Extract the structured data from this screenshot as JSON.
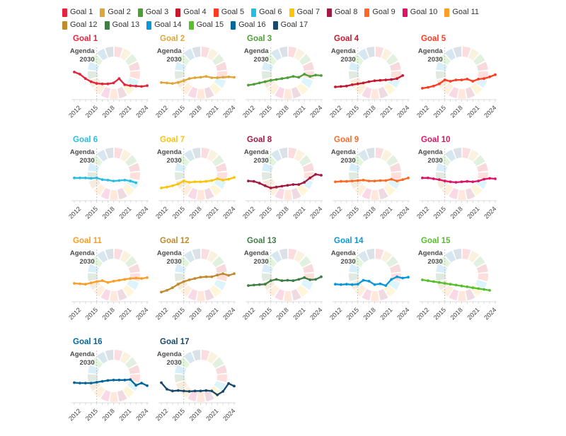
{
  "page": {
    "background": "#ffffff"
  },
  "legend": {
    "items": [
      {
        "label": "Goal 1",
        "color": "#E5243B"
      },
      {
        "label": "Goal 2",
        "color": "#DDA63A"
      },
      {
        "label": "Goal 3",
        "color": "#4C9F38"
      },
      {
        "label": "Goal 4",
        "color": "#C5192D"
      },
      {
        "label": "Goal 5",
        "color": "#FF3A21"
      },
      {
        "label": "Goal 6",
        "color": "#26BDE2"
      },
      {
        "label": "Goal 7",
        "color": "#FCC30B"
      },
      {
        "label": "Goal 8",
        "color": "#A21942"
      },
      {
        "label": "Goal 9",
        "color": "#FD6925"
      },
      {
        "label": "Goal 10",
        "color": "#DD1367"
      },
      {
        "label": "Goal 11",
        "color": "#FD9D24"
      },
      {
        "label": "Goal 12",
        "color": "#BF8B2E"
      },
      {
        "label": "Goal 13",
        "color": "#3F7E44"
      },
      {
        "label": "Goal 14",
        "color": "#0A97D9"
      },
      {
        "label": "Goal 15",
        "color": "#56C02B"
      },
      {
        "label": "Goal 16",
        "color": "#00689D"
      },
      {
        "label": "Goal 17",
        "color": "#19486A"
      }
    ]
  },
  "agenda": {
    "line1": "Agenda",
    "line2": "2030"
  },
  "wheel": {
    "opacity": 0.16,
    "colors": [
      "#E5243B",
      "#DDA63A",
      "#4C9F38",
      "#C5192D",
      "#FF3A21",
      "#26BDE2",
      "#FCC30B",
      "#A21942",
      "#FD6925",
      "#DD1367",
      "#FD9D24",
      "#BF8B2E",
      "#3F7E44",
      "#0A97D9",
      "#56C02B",
      "#00689D",
      "#19486A"
    ]
  },
  "chart_data": {
    "type": "line",
    "layout": "small-multiples",
    "x": [
      2011,
      2012,
      2013,
      2014,
      2015,
      2016,
      2017,
      2018,
      2019,
      2020,
      2021,
      2022,
      2023,
      2024
    ],
    "x_tick_labels": [
      "2012",
      "2015",
      "2018",
      "2021",
      "2024"
    ],
    "annotation_line_x": 2015,
    "ylim": [
      0,
      100
    ],
    "grid": false,
    "legend_position": "top",
    "series": [
      {
        "name": "Goal 1",
        "color": "#E5243B",
        "values": [
          63,
          58,
          48,
          41,
          37,
          36,
          36,
          38,
          48,
          34,
          32,
          31,
          30,
          32
        ]
      },
      {
        "name": "Goal 2",
        "color": "#DDA63A",
        "values": [
          39,
          38,
          37,
          39,
          43,
          48,
          50,
          51,
          53,
          50,
          50,
          51,
          52,
          51
        ]
      },
      {
        "name": "Goal 3",
        "color": "#4C9F38",
        "values": [
          33,
          35,
          38,
          41,
          44,
          46,
          48,
          50,
          53,
          51,
          58,
          53,
          56,
          55
        ]
      },
      {
        "name": "Goal 4",
        "color": "#C5192D",
        "values": [
          29,
          30,
          31,
          34,
          36,
          38,
          41,
          43,
          44,
          45,
          46,
          48,
          55,
          null
        ]
      },
      {
        "name": "Goal 5",
        "color": "#FF3A21",
        "values": [
          26,
          28,
          31,
          36,
          45,
          42,
          45,
          45,
          47,
          42,
          47,
          48,
          52,
          57
        ]
      },
      {
        "name": "Goal 6",
        "color": "#26BDE2",
        "values": [
          52,
          52,
          52,
          51,
          52,
          48,
          47,
          45,
          46,
          47,
          45,
          41,
          null,
          null
        ]
      },
      {
        "name": "Goal 7",
        "color": "#FCC30B",
        "values": [
          29,
          31,
          34,
          38,
          45,
          42,
          43,
          43,
          44,
          46,
          50,
          47,
          49,
          53
        ]
      },
      {
        "name": "Goal 8",
        "color": "#A21942",
        "values": [
          45,
          44,
          40,
          34,
          29,
          31,
          33,
          35,
          37,
          37,
          42,
          52,
          60,
          58
        ]
      },
      {
        "name": "Goal 9",
        "color": "#FD6925",
        "values": [
          43,
          44,
          44,
          45,
          46,
          47,
          45,
          45,
          46,
          46,
          49,
          45,
          48,
          52
        ]
      },
      {
        "name": "Goal 10",
        "color": "#DD1367",
        "values": [
          52,
          52,
          50,
          48,
          45,
          43,
          42,
          43,
          44,
          43,
          45,
          49,
          51,
          50
        ]
      },
      {
        "name": "Goal 11",
        "color": "#FD9D24",
        "values": [
          42,
          41,
          40,
          43,
          46,
          48,
          44,
          47,
          49,
          51,
          53,
          54,
          53,
          55
        ]
      },
      {
        "name": "Goal 12",
        "color": "#BF8B2E",
        "values": [
          22,
          26,
          32,
          40,
          46,
          50,
          53,
          56,
          57,
          57,
          61,
          64,
          60,
          64
        ]
      },
      {
        "name": "Goal 13",
        "color": "#3F7E44",
        "values": [
          37,
          38,
          39,
          40,
          48,
          51,
          48,
          49,
          48,
          51,
          55,
          50,
          51,
          57
        ]
      },
      {
        "name": "Goal 14",
        "color": "#0A97D9",
        "values": [
          40,
          39,
          40,
          39,
          40,
          49,
          47,
          39,
          41,
          37,
          51,
          57,
          54,
          56
        ]
      },
      {
        "name": "Goal 15",
        "color": "#56C02B",
        "values": [
          50,
          48,
          46,
          44,
          42,
          40,
          38,
          36,
          34,
          32,
          30,
          28,
          26,
          null
        ]
      },
      {
        "name": "Goal 16",
        "color": "#00689D",
        "values": [
          46,
          45,
          45,
          45,
          47,
          49,
          51,
          52,
          52,
          52,
          53,
          40,
          45,
          39
        ]
      },
      {
        "name": "Goal 17",
        "color": "#19486A",
        "values": [
          46,
          31,
          27,
          28,
          27,
          26,
          27,
          27,
          28,
          27,
          18,
          26,
          44,
          38
        ]
      }
    ]
  }
}
